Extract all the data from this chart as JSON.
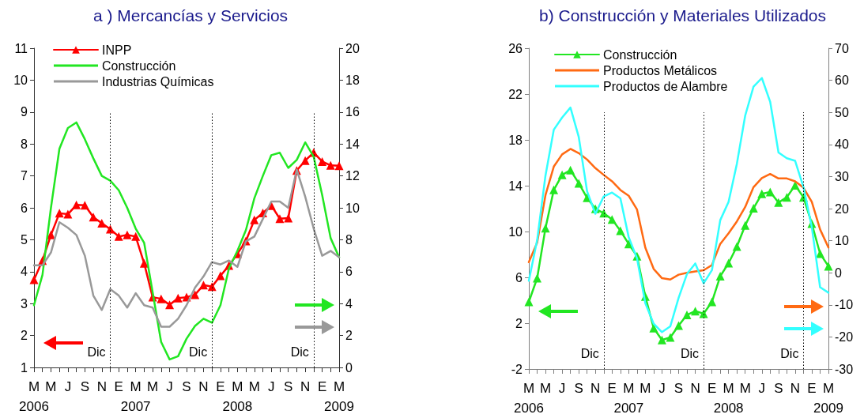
{
  "chart_data": [
    {
      "type": "line",
      "title": "a ) Mercancías y Servicios",
      "x": [
        "2006-03",
        "2006-04",
        "2006-05",
        "2006-06",
        "2006-07",
        "2006-08",
        "2006-09",
        "2006-10",
        "2006-11",
        "2006-12",
        "2007-01",
        "2007-02",
        "2007-03",
        "2007-04",
        "2007-05",
        "2007-06",
        "2007-07",
        "2007-08",
        "2007-09",
        "2007-10",
        "2007-11",
        "2007-12",
        "2008-01",
        "2008-02",
        "2008-03",
        "2008-04",
        "2008-05",
        "2008-06",
        "2008-07",
        "2008-08",
        "2008-09",
        "2008-10",
        "2008-11",
        "2008-12",
        "2009-01",
        "2009-02",
        "2009-03"
      ],
      "series": [
        {
          "name": "INPP",
          "color": "#ff0000",
          "marker": "triangle",
          "axis": "y",
          "values": [
            3.75,
            4.35,
            5.15,
            5.83,
            5.8,
            6.09,
            6.08,
            5.71,
            5.52,
            5.33,
            5.1,
            5.15,
            5.1,
            4.26,
            3.2,
            3.15,
            2.96,
            3.17,
            3.2,
            3.28,
            3.58,
            3.53,
            3.87,
            4.19,
            4.56,
            4.96,
            5.62,
            5.84,
            6.07,
            5.66,
            5.68,
            7.17,
            7.48,
            7.73,
            7.45,
            7.33,
            7.32
          ]
        },
        {
          "name": "Construcción",
          "color": "#22e622",
          "marker": "none",
          "axis": "y2",
          "values": [
            3.9,
            5.8,
            10.0,
            13.7,
            15.0,
            15.35,
            14.3,
            13.1,
            12.0,
            11.7,
            11.1,
            10.0,
            8.7,
            7.8,
            4.7,
            1.6,
            0.5,
            0.7,
            1.8,
            2.6,
            3.05,
            2.8,
            3.9,
            6.2,
            7.3,
            8.6,
            10.6,
            12.0,
            13.3,
            13.45,
            12.5,
            13.0,
            14.1,
            13.2,
            10.8,
            8.1,
            6.9
          ]
        },
        {
          "name": "Industrias Químicas",
          "color": "#999999",
          "marker": "none",
          "axis": "y2",
          "values": [
            6.4,
            6.4,
            7.2,
            9.1,
            8.75,
            8.3,
            7.0,
            4.5,
            3.6,
            4.9,
            4.5,
            3.75,
            4.65,
            3.9,
            3.75,
            2.55,
            2.55,
            3.05,
            3.9,
            5.0,
            5.7,
            6.6,
            6.45,
            6.7,
            6.3,
            7.9,
            8.2,
            9.3,
            10.4,
            10.4,
            10.0,
            12.4,
            10.7,
            8.7,
            7.0,
            7.3,
            6.9
          ]
        }
      ],
      "xlim": [
        "2006-03",
        "2009-03"
      ],
      "xticks": [
        {
          "value": "2006-03",
          "label": "M\n2006"
        },
        {
          "value": "2006-04",
          "label": null
        },
        {
          "value": "2006-05",
          "label": "M"
        },
        {
          "value": "2006-06",
          "label": null
        },
        {
          "value": "2006-07",
          "label": "J"
        },
        {
          "value": "2006-08",
          "label": null
        },
        {
          "value": "2006-09",
          "label": "S"
        },
        {
          "value": "2006-10",
          "label": null
        },
        {
          "value": "2006-11",
          "label": "N"
        },
        {
          "value": "2006-12",
          "label": null
        },
        {
          "value": "2007-01",
          "label": "E"
        },
        {
          "value": "2007-02",
          "label": null
        },
        {
          "value": "2007-03",
          "label": "M\n2007"
        },
        {
          "value": "2007-04",
          "label": null
        },
        {
          "value": "2007-05",
          "label": "M"
        },
        {
          "value": "2007-06",
          "label": null
        },
        {
          "value": "2007-07",
          "label": "J"
        },
        {
          "value": "2007-08",
          "label": null
        },
        {
          "value": "2007-09",
          "label": "S"
        },
        {
          "value": "2007-10",
          "label": null
        },
        {
          "value": "2007-11",
          "label": "N"
        },
        {
          "value": "2007-12",
          "label": null
        },
        {
          "value": "2008-01",
          "label": "E"
        },
        {
          "value": "2008-02",
          "label": null
        },
        {
          "value": "2008-03",
          "label": "M\n2008"
        },
        {
          "value": "2008-04",
          "label": null
        },
        {
          "value": "2008-05",
          "label": "M"
        },
        {
          "value": "2008-06",
          "label": null
        },
        {
          "value": "2008-07",
          "label": "J"
        },
        {
          "value": "2008-08",
          "label": null
        },
        {
          "value": "2008-09",
          "label": "S"
        },
        {
          "value": "2008-10",
          "label": null
        },
        {
          "value": "2008-11",
          "label": "N"
        },
        {
          "value": "2008-12",
          "label": null
        },
        {
          "value": "2009-01",
          "label": "E"
        },
        {
          "value": "2009-02",
          "label": null
        },
        {
          "value": "2009-03",
          "label": "M\n2009"
        }
      ],
      "ylim": [
        1,
        11
      ],
      "yticks": [
        1,
        2,
        3,
        4,
        5,
        6,
        7,
        8,
        9,
        10,
        11
      ],
      "y2lim": [
        0,
        20
      ],
      "y2ticks": [
        0,
        2,
        4,
        6,
        8,
        10,
        12,
        14,
        16,
        18,
        20
      ],
      "ref_lines": [
        {
          "axis": "x",
          "value": "2006-12",
          "label": "Dic",
          "line_style": "dotted",
          "color": "#000000"
        },
        {
          "axis": "x",
          "value": "2007-12",
          "label": "Dic",
          "line_style": "dotted",
          "color": "#000000"
        },
        {
          "axis": "x",
          "value": "2008-12",
          "label": "Dic",
          "line_style": "dotted",
          "color": "#000000"
        }
      ],
      "grid": false,
      "legend": "top left"
    },
    {
      "type": "line",
      "title": "b) Construcción y Materiales Utilizados",
      "x": [
        "2006-03",
        "2006-04",
        "2006-05",
        "2006-06",
        "2006-07",
        "2006-08",
        "2006-09",
        "2006-10",
        "2006-11",
        "2006-12",
        "2007-01",
        "2007-02",
        "2007-03",
        "2007-04",
        "2007-05",
        "2007-06",
        "2007-07",
        "2007-08",
        "2007-09",
        "2007-10",
        "2007-11",
        "2007-12",
        "2008-01",
        "2008-02",
        "2008-03",
        "2008-04",
        "2008-05",
        "2008-06",
        "2008-07",
        "2008-08",
        "2008-09",
        "2008-10",
        "2008-11",
        "2008-12",
        "2009-01",
        "2009-02",
        "2009-03"
      ],
      "series": [
        {
          "name": "Construcción",
          "color": "#22e622",
          "marker": "triangle",
          "axis": "y",
          "values": [
            3.86,
            5.93,
            10.3,
            13.63,
            14.94,
            15.36,
            14.21,
            12.94,
            11.98,
            11.61,
            11.06,
            10.07,
            8.92,
            7.84,
            4.32,
            1.57,
            0.53,
            0.76,
            1.79,
            2.72,
            3.06,
            2.83,
            3.86,
            6.1,
            7.24,
            8.69,
            10.53,
            12.03,
            13.29,
            13.45,
            12.53,
            12.99,
            14.03,
            12.99,
            10.69,
            8.07,
            6.97
          ]
        },
        {
          "name": "Productos Metálicos",
          "color": "#ff6a13",
          "marker": "none",
          "axis": "y2",
          "values": [
            3.3,
            9.4,
            24.2,
            33.1,
            36.9,
            38.6,
            37.3,
            35.3,
            32.6,
            30.5,
            28.5,
            25.8,
            24.0,
            19.7,
            7.8,
            1.2,
            -1.7,
            -2.1,
            -0.6,
            0.0,
            0.4,
            0.8,
            2.4,
            9.0,
            12.3,
            16.0,
            20.5,
            26.7,
            29.5,
            30.8,
            29.4,
            29.4,
            28.5,
            26.5,
            22.1,
            13.5,
            7.9
          ]
        },
        {
          "name": "Productos de Alambre",
          "color": "#33ffff",
          "marker": "none",
          "axis": "y2",
          "values": [
            -2.5,
            10.2,
            30.3,
            44.6,
            48.4,
            51.5,
            42.3,
            25.4,
            18.4,
            23.8,
            25.0,
            23.2,
            11.1,
            4.5,
            -9.5,
            -15.9,
            -18.5,
            -16.7,
            -7.8,
            -0.4,
            2.9,
            -3.3,
            0.8,
            16.4,
            22.1,
            34.0,
            49.0,
            58.0,
            60.7,
            53.3,
            37.5,
            35.7,
            34.9,
            26.7,
            14.3,
            -4.5,
            -6.2
          ]
        }
      ],
      "xlim": [
        "2006-03",
        "2009-03"
      ],
      "xticks": [
        {
          "value": "2006-03",
          "label": "M\n2006"
        },
        {
          "value": "2006-04",
          "label": null
        },
        {
          "value": "2006-05",
          "label": "M"
        },
        {
          "value": "2006-06",
          "label": null
        },
        {
          "value": "2006-07",
          "label": "J"
        },
        {
          "value": "2006-08",
          "label": null
        },
        {
          "value": "2006-09",
          "label": "S"
        },
        {
          "value": "2006-10",
          "label": null
        },
        {
          "value": "2006-11",
          "label": "N"
        },
        {
          "value": "2006-12",
          "label": null
        },
        {
          "value": "2007-01",
          "label": "E"
        },
        {
          "value": "2007-02",
          "label": null
        },
        {
          "value": "2007-03",
          "label": "M\n2007"
        },
        {
          "value": "2007-04",
          "label": null
        },
        {
          "value": "2007-05",
          "label": "M"
        },
        {
          "value": "2007-06",
          "label": null
        },
        {
          "value": "2007-07",
          "label": "J"
        },
        {
          "value": "2007-08",
          "label": null
        },
        {
          "value": "2007-09",
          "label": "S"
        },
        {
          "value": "2007-10",
          "label": null
        },
        {
          "value": "2007-11",
          "label": "N"
        },
        {
          "value": "2007-12",
          "label": null
        },
        {
          "value": "2008-01",
          "label": "E"
        },
        {
          "value": "2008-02",
          "label": null
        },
        {
          "value": "2008-03",
          "label": "M\n2008"
        },
        {
          "value": "2008-04",
          "label": null
        },
        {
          "value": "2008-05",
          "label": "M"
        },
        {
          "value": "2008-06",
          "label": null
        },
        {
          "value": "2008-07",
          "label": "J"
        },
        {
          "value": "2008-08",
          "label": null
        },
        {
          "value": "2008-09",
          "label": "S"
        },
        {
          "value": "2008-10",
          "label": null
        },
        {
          "value": "2008-11",
          "label": "N"
        },
        {
          "value": "2008-12",
          "label": null
        },
        {
          "value": "2009-01",
          "label": "E"
        },
        {
          "value": "2009-02",
          "label": null
        },
        {
          "value": "2009-03",
          "label": "M\n2009"
        }
      ],
      "ylim": [
        -2,
        26
      ],
      "yticks": [
        -2,
        2,
        6,
        10,
        14,
        18,
        22,
        26
      ],
      "y2lim": [
        -30,
        70
      ],
      "y2ticks": [
        -30,
        -20,
        -10,
        0,
        10,
        20,
        30,
        40,
        50,
        60,
        70
      ],
      "ref_lines": [
        {
          "axis": "x",
          "value": "2006-12",
          "label": "Dic",
          "line_style": "dotted",
          "color": "#000000"
        },
        {
          "axis": "x",
          "value": "2007-12",
          "label": "Dic",
          "line_style": "dotted",
          "color": "#000000"
        },
        {
          "axis": "x",
          "value": "2008-12",
          "label": "Dic",
          "line_style": "dotted",
          "color": "#000000"
        }
      ],
      "grid": false,
      "legend": "top left"
    }
  ]
}
